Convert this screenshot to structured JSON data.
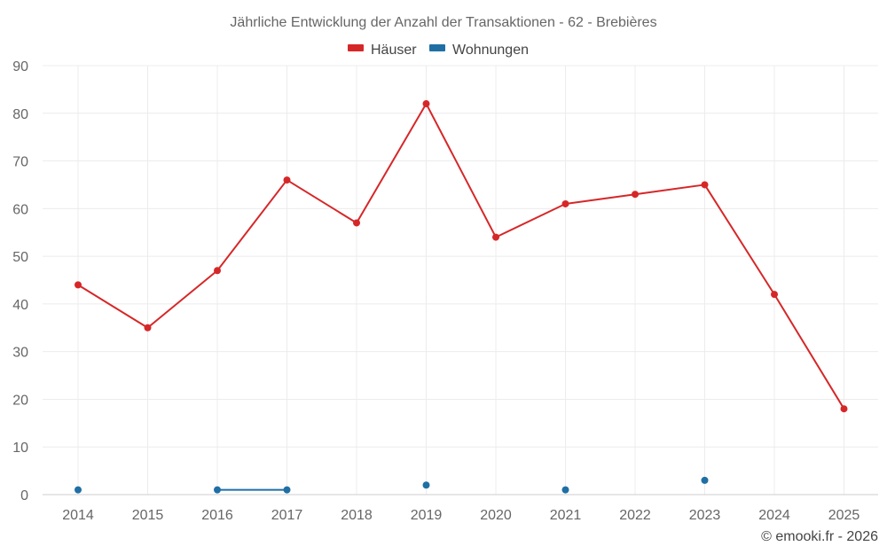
{
  "chart_data": {
    "type": "line",
    "title": "Jährliche Entwicklung der Anzahl der Transaktionen - 62 - Brebières",
    "categories": [
      "2014",
      "2015",
      "2016",
      "2017",
      "2018",
      "2019",
      "2020",
      "2021",
      "2022",
      "2023",
      "2024",
      "2025"
    ],
    "ylim": [
      0,
      90
    ],
    "yticks": [
      0,
      10,
      20,
      30,
      40,
      50,
      60,
      70,
      80,
      90
    ],
    "grid": true,
    "legend_position": "top-center",
    "series": [
      {
        "name": "Häuser",
        "color": "#d62728",
        "values": [
          44,
          35,
          47,
          66,
          57,
          82,
          54,
          61,
          63,
          65,
          42,
          18
        ]
      },
      {
        "name": "Wohnungen",
        "color": "#1f6fa5",
        "values": [
          1,
          null,
          1,
          1,
          null,
          2,
          null,
          1,
          null,
          3,
          null,
          null
        ]
      }
    ],
    "credit": "© emooki.fr - 2026"
  }
}
